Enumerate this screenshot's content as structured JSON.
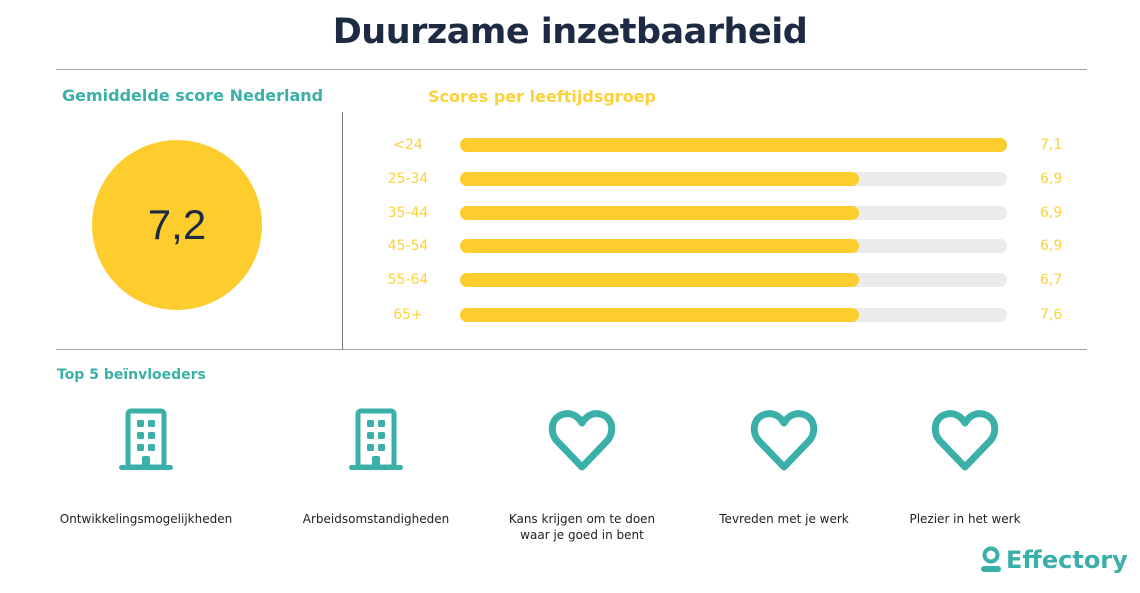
{
  "title": "Duurzame inzetbaarheid",
  "average": {
    "heading": "Gemiddelde score Nederland",
    "value": "7,2"
  },
  "colors": {
    "teal": "#3bb0a9",
    "yellow": "#fdcd2e",
    "navy": "#1d2a44",
    "track": "#ebebeb"
  },
  "chart_data": {
    "type": "bar",
    "orientation": "horizontal",
    "title": "Scores per leeftijdsgroep",
    "categories": [
      "<24",
      "25-34",
      "35-44",
      "45-54",
      "55-64",
      "65+"
    ],
    "value_labels": [
      "7,1",
      "6,9",
      "6,9",
      "6,9",
      "6,7",
      "7,6"
    ],
    "values": [
      7.1,
      6.9,
      6.9,
      6.9,
      6.7,
      7.6
    ],
    "bar_fill_fraction": [
      1.0,
      0.73,
      0.73,
      0.73,
      0.73,
      0.73
    ]
  },
  "influencers": {
    "heading": "Top 5 beïnvloeders",
    "items": [
      {
        "icon": "building-icon",
        "label": "Ontwikkelingsmogelijkheden"
      },
      {
        "icon": "building-icon",
        "label": "Arbeidsomstandigheden"
      },
      {
        "icon": "heart-icon",
        "label": "Kans krijgen om te doen waar je goed in bent"
      },
      {
        "icon": "heart-icon",
        "label": "Tevreden met je werk"
      },
      {
        "icon": "heart-icon",
        "label": "Plezier in het werk"
      }
    ]
  },
  "logo": {
    "text": "Effectory"
  }
}
